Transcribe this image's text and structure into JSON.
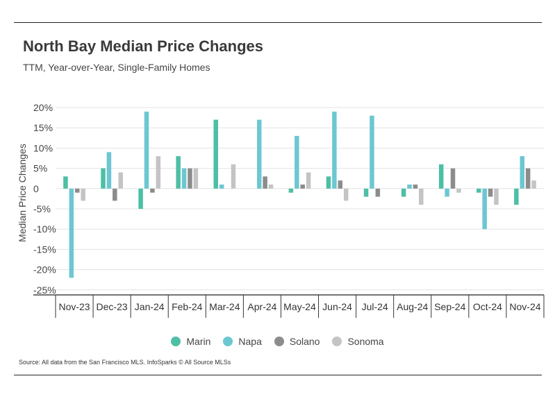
{
  "header": {
    "title": "North Bay Median Price Changes",
    "subtitle": "TTM, Year-over-Year, Single-Family Homes"
  },
  "footer": {
    "source": "Source:  All data from the San Francisco MLS. InfoSparks © All Source MLSs"
  },
  "chart_data": {
    "type": "bar",
    "ylabel": "Median Price Changes",
    "ylim": [
      -27,
      20
    ],
    "yticks": [
      "20%",
      "15%",
      "10%",
      "5%",
      "0",
      "-5%",
      "-10%",
      "-15%",
      "-20%",
      "-25%"
    ],
    "ytick_values": [
      20,
      15,
      10,
      5,
      0,
      -5,
      -10,
      -15,
      -20,
      -25
    ],
    "grid": true,
    "legend_position": "bottom",
    "categories": [
      "Nov-23",
      "Dec-23",
      "Jan-24",
      "Feb-24",
      "Mar-24",
      "Apr-24",
      "May-24",
      "Jun-24",
      "Jul-24",
      "Aug-24",
      "Sep-24",
      "Oct-24",
      "Nov-24"
    ],
    "series": [
      {
        "name": "Marin",
        "color": "#4dbfa4",
        "values": [
          3,
          5,
          -5,
          8,
          17,
          null,
          -1,
          3,
          -2,
          -2,
          6,
          -1,
          -4
        ]
      },
      {
        "name": "Napa",
        "color": "#6cc7d2",
        "values": [
          -22,
          9,
          19,
          5,
          1,
          17,
          13,
          19,
          18,
          1,
          -2,
          -10,
          8
        ]
      },
      {
        "name": "Solano",
        "color": "#8c8c8c",
        "values": [
          -1,
          -3,
          -1,
          5,
          null,
          3,
          1,
          2,
          -2,
          1,
          5,
          -2,
          5
        ]
      },
      {
        "name": "Sonoma",
        "color": "#c4c4c4",
        "values": [
          -3,
          4,
          8,
          5,
          6,
          1,
          4,
          -3,
          null,
          -4,
          -1,
          -4,
          2
        ]
      }
    ]
  }
}
